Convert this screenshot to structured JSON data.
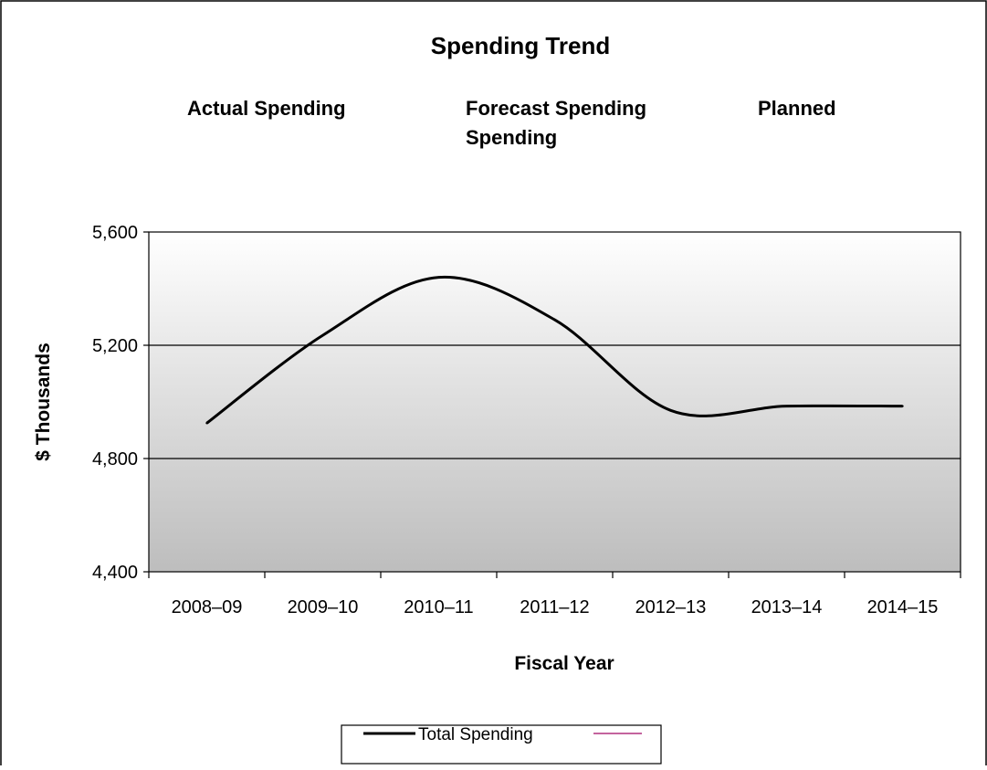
{
  "chart_data": {
    "type": "line",
    "title": "Spending Trend",
    "phase_labels": {
      "actual": "Actual Spending",
      "forecast_line1": "Forecast Spending",
      "forecast_line2": "Spending",
      "planned": "Planned"
    },
    "xlabel": "Fiscal Year",
    "ylabel": "$ Thousands",
    "categories": [
      "2008–09",
      "2009–10",
      "2010–11",
      "2011–12",
      "2012–13",
      "2013–14",
      "2014–15"
    ],
    "ylim": [
      4400,
      5600
    ],
    "yticks": [
      4400,
      4800,
      5200,
      5600
    ],
    "ytick_labels": [
      "4,400",
      "4,800",
      "5,200",
      "5,600"
    ],
    "grid": "horizontal",
    "legend_position": "bottom",
    "series": [
      {
        "name": "Total Spending",
        "values": [
          4925,
          5235,
          5440,
          5290,
          4970,
          4985,
          4985
        ]
      }
    ],
    "colors": {
      "series_line": "#000000",
      "legend_swatch_2": "#b0307e",
      "plot_top": "#ffffff",
      "plot_bottom": "#bdbdbd"
    }
  },
  "legend": {
    "entry_1": "Total Spending"
  }
}
